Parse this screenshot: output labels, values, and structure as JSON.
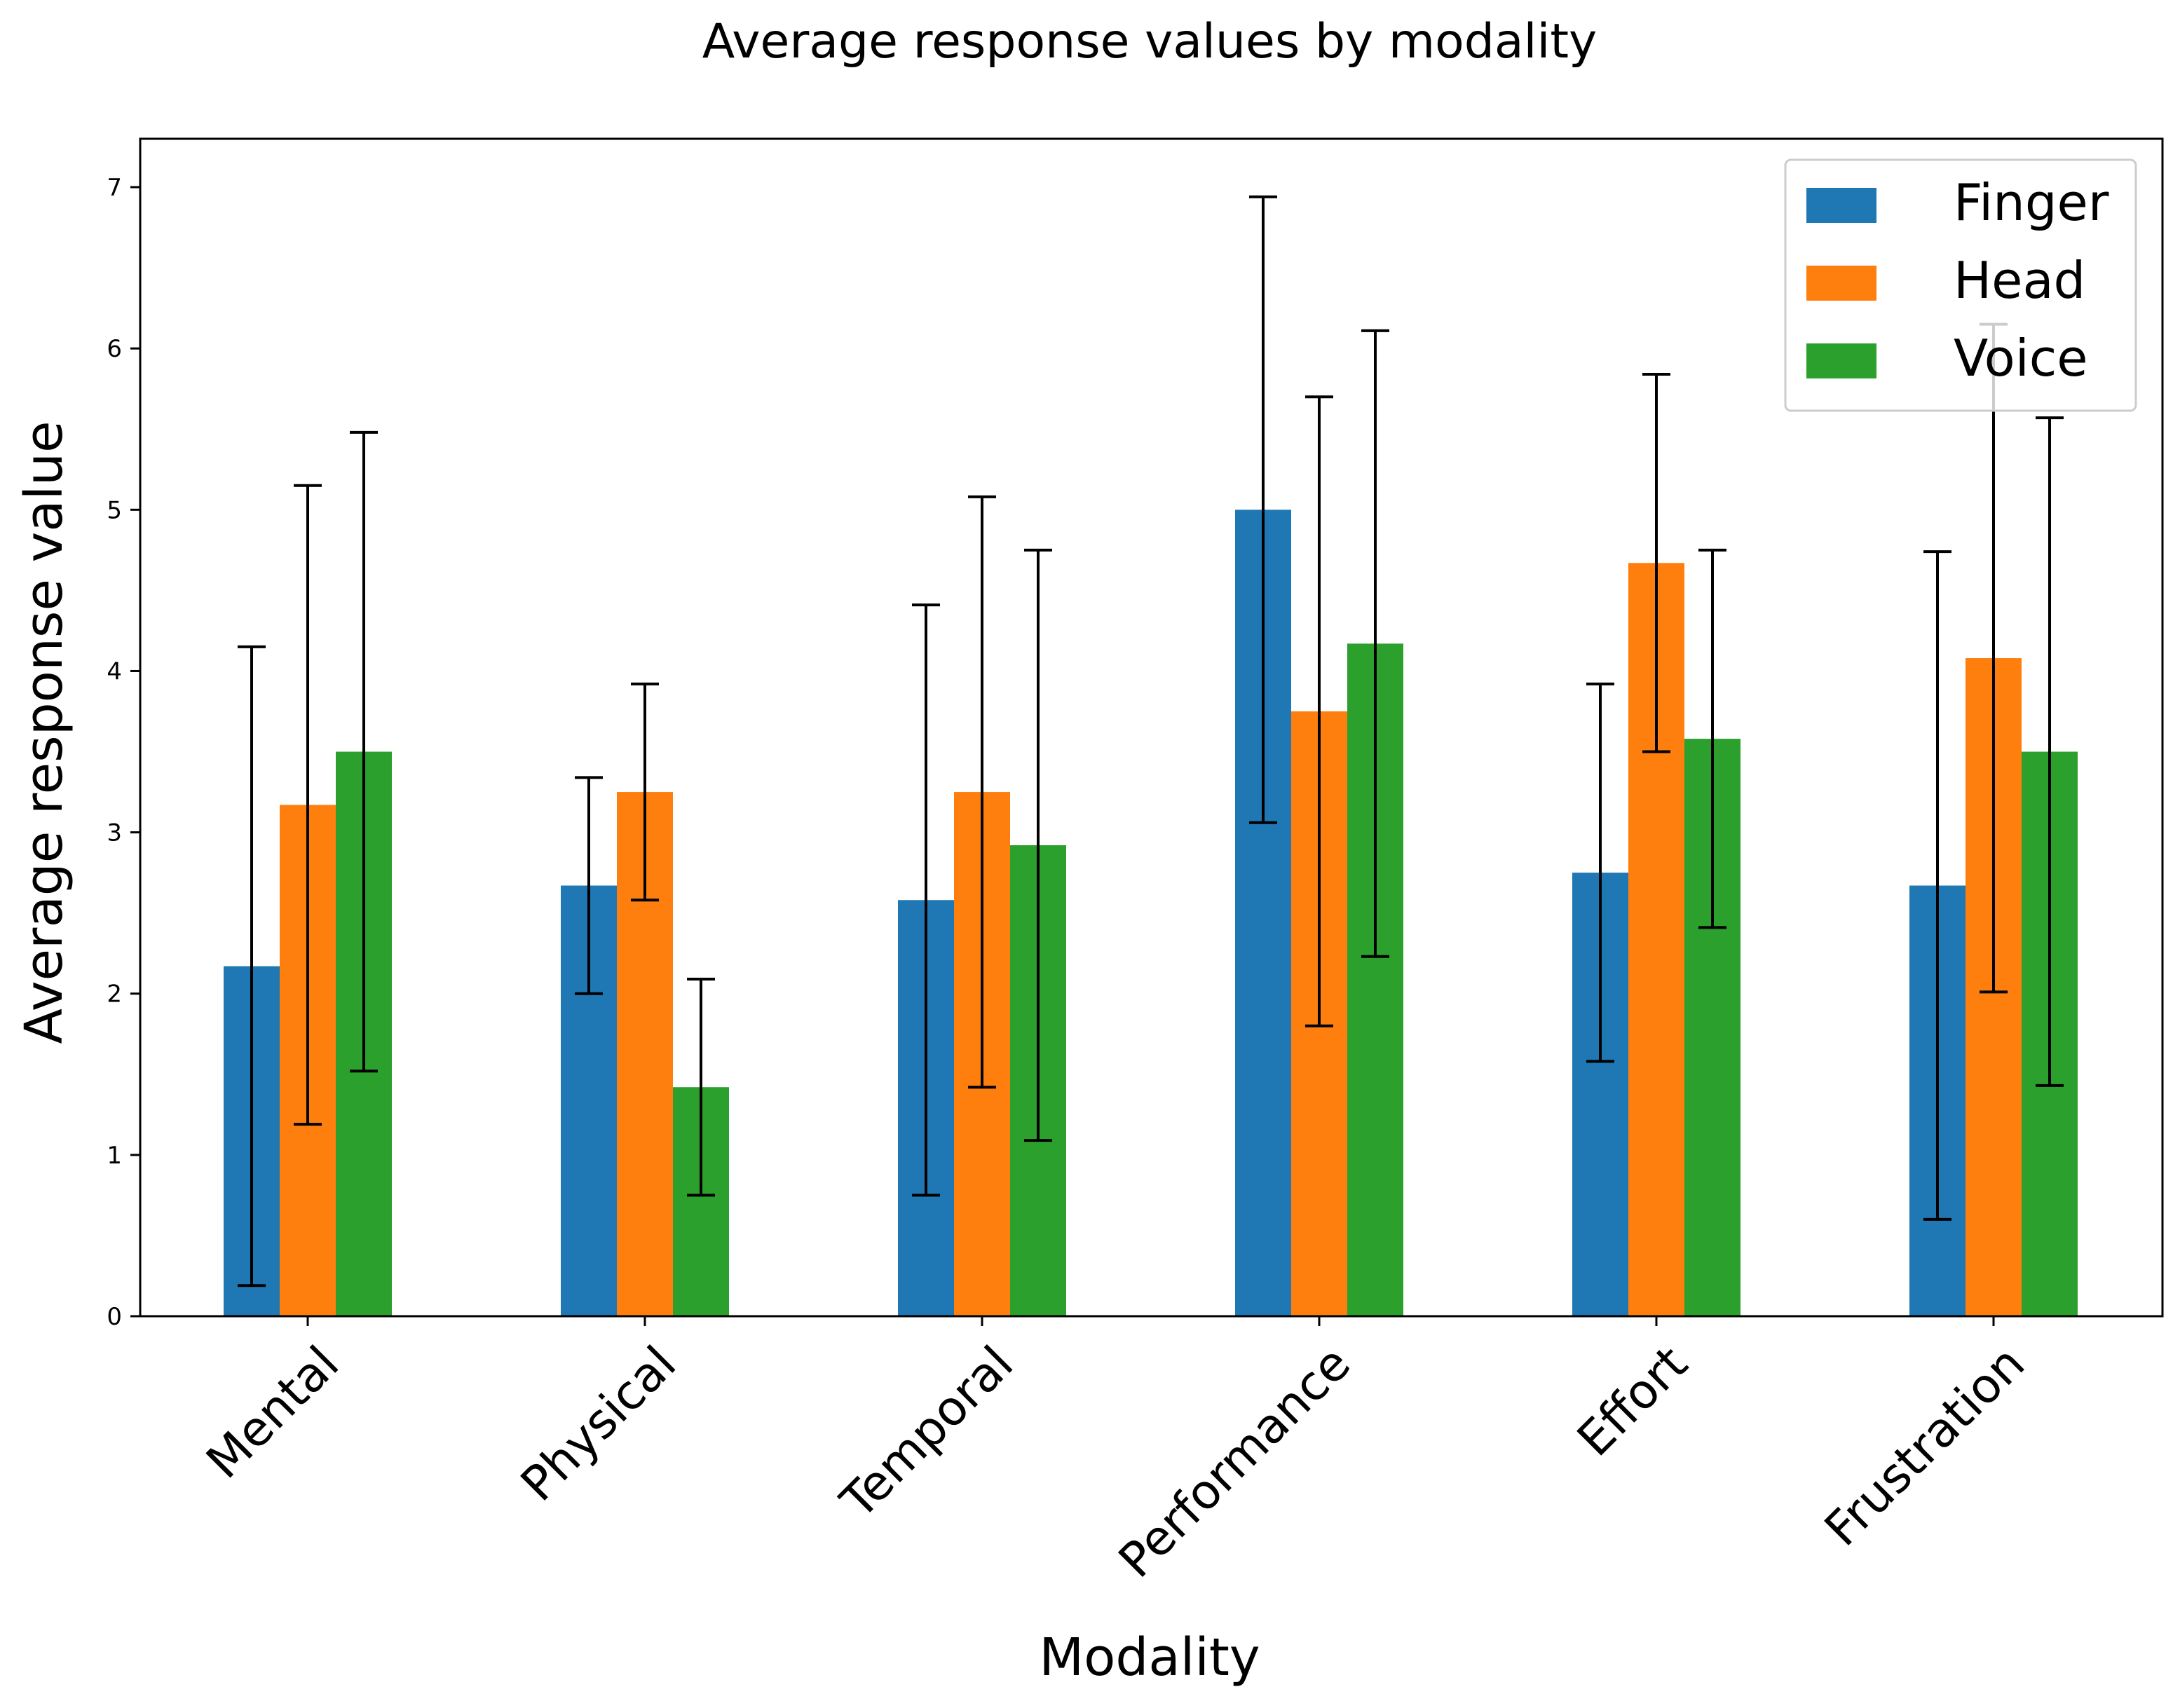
{
  "chart_data": {
    "type": "bar",
    "title": "Average response values by modality",
    "xlabel": "Modality",
    "ylabel": "Average response value",
    "ylim": [
      0,
      7.3
    ],
    "yticks": [
      "0",
      "1",
      "2",
      "3",
      "4",
      "5",
      "6",
      "7"
    ],
    "categories": [
      "Mental",
      "Physical",
      "Temporal",
      "Performance",
      "Effort",
      "Frustration"
    ],
    "series": [
      {
        "name": "Finger",
        "color": "#1f77b4",
        "values": [
          2.17,
          2.67,
          2.58,
          5.0,
          2.75,
          2.67
        ],
        "errors": [
          1.98,
          0.67,
          1.83,
          1.94,
          1.17,
          2.07
        ]
      },
      {
        "name": "Head",
        "color": "#ff7f0e",
        "values": [
          3.17,
          3.25,
          3.25,
          3.75,
          4.67,
          4.08
        ],
        "errors": [
          1.98,
          0.67,
          1.83,
          1.95,
          1.17,
          2.07
        ]
      },
      {
        "name": "Voice",
        "color": "#2ca02c",
        "values": [
          3.5,
          1.42,
          2.92,
          4.17,
          3.58,
          3.5
        ],
        "errors": [
          1.98,
          0.67,
          1.83,
          1.94,
          1.17,
          2.07
        ]
      }
    ],
    "legend": {
      "position": "top-right"
    },
    "grid": false
  }
}
